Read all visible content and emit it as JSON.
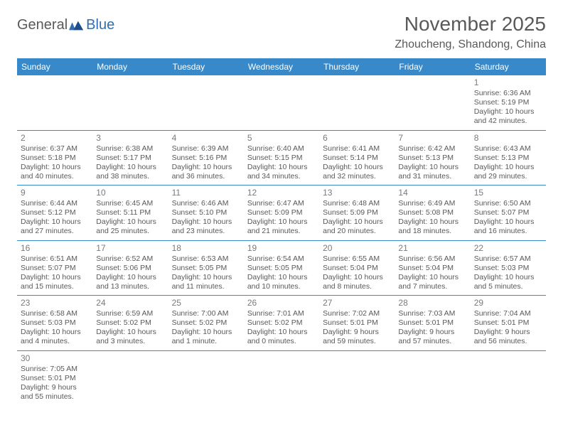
{
  "logo": {
    "text1": "General",
    "text2": "Blue"
  },
  "title": "November 2025",
  "location": "Zhoucheng, Shandong, China",
  "dayHeaders": [
    "Sunday",
    "Monday",
    "Tuesday",
    "Wednesday",
    "Thursday",
    "Friday",
    "Saturday"
  ],
  "colors": {
    "headerBg": "#3789c9",
    "headerText": "#ffffff",
    "bodyText": "#595959",
    "border": "#3789c9"
  },
  "weeks": [
    [
      null,
      null,
      null,
      null,
      null,
      null,
      {
        "d": "1",
        "sunrise": "Sunrise: 6:36 AM",
        "sunset": "Sunset: 5:19 PM",
        "day1": "Daylight: 10 hours",
        "day2": "and 42 minutes."
      }
    ],
    [
      {
        "d": "2",
        "sunrise": "Sunrise: 6:37 AM",
        "sunset": "Sunset: 5:18 PM",
        "day1": "Daylight: 10 hours",
        "day2": "and 40 minutes."
      },
      {
        "d": "3",
        "sunrise": "Sunrise: 6:38 AM",
        "sunset": "Sunset: 5:17 PM",
        "day1": "Daylight: 10 hours",
        "day2": "and 38 minutes."
      },
      {
        "d": "4",
        "sunrise": "Sunrise: 6:39 AM",
        "sunset": "Sunset: 5:16 PM",
        "day1": "Daylight: 10 hours",
        "day2": "and 36 minutes."
      },
      {
        "d": "5",
        "sunrise": "Sunrise: 6:40 AM",
        "sunset": "Sunset: 5:15 PM",
        "day1": "Daylight: 10 hours",
        "day2": "and 34 minutes."
      },
      {
        "d": "6",
        "sunrise": "Sunrise: 6:41 AM",
        "sunset": "Sunset: 5:14 PM",
        "day1": "Daylight: 10 hours",
        "day2": "and 32 minutes."
      },
      {
        "d": "7",
        "sunrise": "Sunrise: 6:42 AM",
        "sunset": "Sunset: 5:13 PM",
        "day1": "Daylight: 10 hours",
        "day2": "and 31 minutes."
      },
      {
        "d": "8",
        "sunrise": "Sunrise: 6:43 AM",
        "sunset": "Sunset: 5:13 PM",
        "day1": "Daylight: 10 hours",
        "day2": "and 29 minutes."
      }
    ],
    [
      {
        "d": "9",
        "sunrise": "Sunrise: 6:44 AM",
        "sunset": "Sunset: 5:12 PM",
        "day1": "Daylight: 10 hours",
        "day2": "and 27 minutes."
      },
      {
        "d": "10",
        "sunrise": "Sunrise: 6:45 AM",
        "sunset": "Sunset: 5:11 PM",
        "day1": "Daylight: 10 hours",
        "day2": "and 25 minutes."
      },
      {
        "d": "11",
        "sunrise": "Sunrise: 6:46 AM",
        "sunset": "Sunset: 5:10 PM",
        "day1": "Daylight: 10 hours",
        "day2": "and 23 minutes."
      },
      {
        "d": "12",
        "sunrise": "Sunrise: 6:47 AM",
        "sunset": "Sunset: 5:09 PM",
        "day1": "Daylight: 10 hours",
        "day2": "and 21 minutes."
      },
      {
        "d": "13",
        "sunrise": "Sunrise: 6:48 AM",
        "sunset": "Sunset: 5:09 PM",
        "day1": "Daylight: 10 hours",
        "day2": "and 20 minutes."
      },
      {
        "d": "14",
        "sunrise": "Sunrise: 6:49 AM",
        "sunset": "Sunset: 5:08 PM",
        "day1": "Daylight: 10 hours",
        "day2": "and 18 minutes."
      },
      {
        "d": "15",
        "sunrise": "Sunrise: 6:50 AM",
        "sunset": "Sunset: 5:07 PM",
        "day1": "Daylight: 10 hours",
        "day2": "and 16 minutes."
      }
    ],
    [
      {
        "d": "16",
        "sunrise": "Sunrise: 6:51 AM",
        "sunset": "Sunset: 5:07 PM",
        "day1": "Daylight: 10 hours",
        "day2": "and 15 minutes."
      },
      {
        "d": "17",
        "sunrise": "Sunrise: 6:52 AM",
        "sunset": "Sunset: 5:06 PM",
        "day1": "Daylight: 10 hours",
        "day2": "and 13 minutes."
      },
      {
        "d": "18",
        "sunrise": "Sunrise: 6:53 AM",
        "sunset": "Sunset: 5:05 PM",
        "day1": "Daylight: 10 hours",
        "day2": "and 11 minutes."
      },
      {
        "d": "19",
        "sunrise": "Sunrise: 6:54 AM",
        "sunset": "Sunset: 5:05 PM",
        "day1": "Daylight: 10 hours",
        "day2": "and 10 minutes."
      },
      {
        "d": "20",
        "sunrise": "Sunrise: 6:55 AM",
        "sunset": "Sunset: 5:04 PM",
        "day1": "Daylight: 10 hours",
        "day2": "and 8 minutes."
      },
      {
        "d": "21",
        "sunrise": "Sunrise: 6:56 AM",
        "sunset": "Sunset: 5:04 PM",
        "day1": "Daylight: 10 hours",
        "day2": "and 7 minutes."
      },
      {
        "d": "22",
        "sunrise": "Sunrise: 6:57 AM",
        "sunset": "Sunset: 5:03 PM",
        "day1": "Daylight: 10 hours",
        "day2": "and 5 minutes."
      }
    ],
    [
      {
        "d": "23",
        "sunrise": "Sunrise: 6:58 AM",
        "sunset": "Sunset: 5:03 PM",
        "day1": "Daylight: 10 hours",
        "day2": "and 4 minutes."
      },
      {
        "d": "24",
        "sunrise": "Sunrise: 6:59 AM",
        "sunset": "Sunset: 5:02 PM",
        "day1": "Daylight: 10 hours",
        "day2": "and 3 minutes."
      },
      {
        "d": "25",
        "sunrise": "Sunrise: 7:00 AM",
        "sunset": "Sunset: 5:02 PM",
        "day1": "Daylight: 10 hours",
        "day2": "and 1 minute."
      },
      {
        "d": "26",
        "sunrise": "Sunrise: 7:01 AM",
        "sunset": "Sunset: 5:02 PM",
        "day1": "Daylight: 10 hours",
        "day2": "and 0 minutes."
      },
      {
        "d": "27",
        "sunrise": "Sunrise: 7:02 AM",
        "sunset": "Sunset: 5:01 PM",
        "day1": "Daylight: 9 hours",
        "day2": "and 59 minutes."
      },
      {
        "d": "28",
        "sunrise": "Sunrise: 7:03 AM",
        "sunset": "Sunset: 5:01 PM",
        "day1": "Daylight: 9 hours",
        "day2": "and 57 minutes."
      },
      {
        "d": "29",
        "sunrise": "Sunrise: 7:04 AM",
        "sunset": "Sunset: 5:01 PM",
        "day1": "Daylight: 9 hours",
        "day2": "and 56 minutes."
      }
    ],
    [
      {
        "d": "30",
        "sunrise": "Sunrise: 7:05 AM",
        "sunset": "Sunset: 5:01 PM",
        "day1": "Daylight: 9 hours",
        "day2": "and 55 minutes."
      },
      null,
      null,
      null,
      null,
      null,
      null
    ]
  ]
}
